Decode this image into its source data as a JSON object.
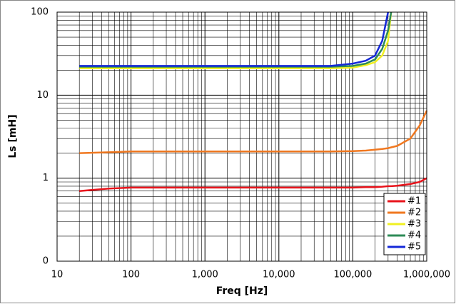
{
  "chart_data": {
    "type": "line",
    "x_label": "Freq [Hz]",
    "y_label": "Ls [mH]",
    "x": [
      20,
      50,
      100,
      1000,
      10000,
      50000,
      100000,
      150000,
      200000,
      250000,
      300000,
      330000,
      400000,
      600000,
      800000,
      1000000
    ],
    "series": [
      {
        "name": "#1",
        "color": "#e8141c",
        "values": [
          0.7,
          0.75,
          0.77,
          0.77,
          0.77,
          0.77,
          0.77,
          0.78,
          0.78,
          0.79,
          0.8,
          0.8,
          0.81,
          0.85,
          0.9,
          1.0
        ]
      },
      {
        "name": "#2",
        "color": "#f07820",
        "values": [
          2.0,
          2.05,
          2.1,
          2.1,
          2.1,
          2.1,
          2.12,
          2.15,
          2.2,
          2.25,
          2.3,
          2.35,
          2.45,
          3.0,
          4.3,
          6.5
        ]
      },
      {
        "name": "#3",
        "color": "#f0f020",
        "values": [
          21,
          21,
          21,
          21,
          21,
          21,
          21.5,
          23,
          25,
          30,
          45,
          100,
          null,
          null,
          null,
          null
        ]
      },
      {
        "name": "#4",
        "color": "#2e8b57",
        "values": [
          22,
          22,
          22,
          22,
          22,
          22,
          22.5,
          24,
          27,
          36,
          60,
          100,
          null,
          null,
          null,
          null
        ]
      },
      {
        "name": "#5",
        "color": "#1428d8",
        "values": [
          22.5,
          22.5,
          22.5,
          22.5,
          22.5,
          22.5,
          24,
          26,
          30,
          45,
          100,
          null,
          null,
          null,
          null,
          null
        ]
      }
    ],
    "xlim": [
      10,
      1000000
    ],
    "xticks": [
      10,
      100,
      {
        "value": 1000,
        "label": "1,000"
      },
      {
        "value": 10000,
        "label": "10,000"
      },
      {
        "value": 100000,
        "label": "100,000"
      },
      {
        "value": 1000000,
        "label": "1,000,000"
      }
    ],
    "ylim": [
      0.1,
      100
    ],
    "yticks": [
      {
        "value": 0.1,
        "label": "0"
      },
      1,
      10,
      100
    ],
    "x_log": true,
    "y_log": true,
    "grid": true,
    "minor_grid": true,
    "legend": "lower right"
  }
}
